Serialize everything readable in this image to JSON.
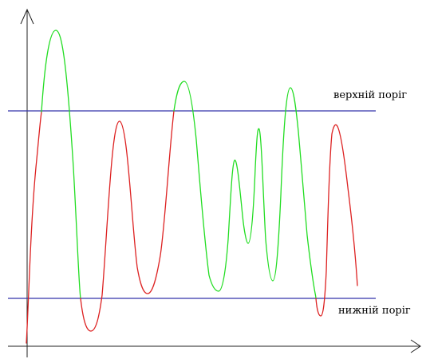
{
  "labels": {
    "upper": "верхній поріг",
    "lower": "нижній поріг"
  },
  "colors": {
    "axis": "#222222",
    "threshold": "#3333aa",
    "above_band": "#22dd22",
    "within_band": "#dd2222"
  }
}
